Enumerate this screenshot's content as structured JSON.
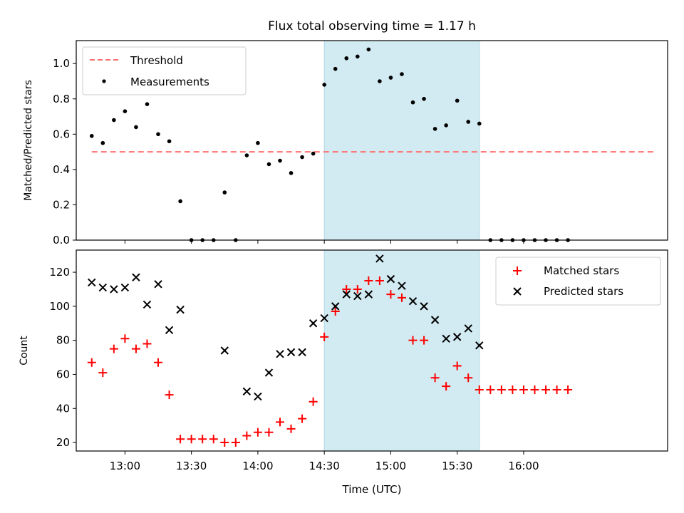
{
  "figure": {
    "title": "Flux total observing time = 1.17 h",
    "xlabel": "Time (UTC)",
    "xticks": [
      "13:00",
      "13:30",
      "14:00",
      "14:30",
      "15:00",
      "15:30",
      "16:00"
    ],
    "colors": {
      "shade": "#add8e6",
      "threshold": "#ff7070",
      "measurements": "#000000",
      "matched": "#ff0000",
      "predicted": "#000000"
    }
  },
  "chart_data": [
    {
      "type": "scatter",
      "ylabel": "Matched/Predicted stars",
      "yticks": [
        "0.0",
        "0.2",
        "0.4",
        "0.6",
        "0.8",
        "1.0"
      ],
      "ylim": [
        0,
        1.13
      ],
      "xlim": [
        "12:38",
        "17:05"
      ],
      "legend_position": "top-left",
      "shaded_span": [
        "14:30",
        "15:40"
      ],
      "series": [
        {
          "name": "Threshold",
          "style": "dashed line",
          "x": [
            "12:45",
            "17:00"
          ],
          "y": [
            0.5,
            0.5
          ]
        },
        {
          "name": "Measurements",
          "style": "dots",
          "x": [
            "12:45",
            "12:50",
            "12:55",
            "13:00",
            "13:05",
            "13:10",
            "13:15",
            "13:20",
            "13:25",
            "13:30",
            "13:35",
            "13:40",
            "13:45",
            "13:50",
            "13:55",
            "14:00",
            "14:05",
            "14:10",
            "14:15",
            "14:20",
            "14:25",
            "14:30",
            "14:35",
            "14:40",
            "14:45",
            "14:50",
            "14:55",
            "15:00",
            "15:05",
            "15:10",
            "15:15",
            "15:20",
            "15:25",
            "15:30",
            "15:35",
            "15:40",
            "15:45",
            "15:50",
            "15:55",
            "16:00",
            "16:05",
            "16:10",
            "16:15",
            "16:20"
          ],
          "y": [
            0.59,
            0.55,
            0.68,
            0.73,
            0.64,
            0.77,
            0.6,
            0.56,
            0.22,
            0.0,
            0.0,
            0.0,
            0.27,
            0.0,
            0.48,
            0.55,
            0.43,
            0.45,
            0.38,
            0.47,
            0.49,
            0.88,
            0.97,
            1.03,
            1.04,
            1.08,
            0.9,
            0.92,
            0.94,
            0.78,
            0.8,
            0.63,
            0.65,
            0.79,
            0.67,
            0.66,
            0.0,
            0.0,
            0.0,
            0.0,
            0.0,
            0.0,
            0.0,
            0.0
          ]
        }
      ]
    },
    {
      "type": "scatter",
      "ylabel": "Count",
      "yticks": [
        "20",
        "40",
        "60",
        "80",
        "100",
        "120"
      ],
      "ylim": [
        15,
        133
      ],
      "xlim": [
        "12:38",
        "17:05"
      ],
      "legend_position": "top-right",
      "shaded_span": [
        "14:30",
        "15:40"
      ],
      "series": [
        {
          "name": "Matched stars",
          "style": "plus markers",
          "x": [
            "12:45",
            "12:50",
            "12:55",
            "13:00",
            "13:05",
            "13:10",
            "13:15",
            "13:20",
            "13:25",
            "13:30",
            "13:35",
            "13:40",
            "13:45",
            "13:50",
            "13:55",
            "14:00",
            "14:05",
            "14:10",
            "14:15",
            "14:20",
            "14:25",
            "14:30",
            "14:35",
            "14:40",
            "14:45",
            "14:50",
            "14:55",
            "15:00",
            "15:05",
            "15:10",
            "15:15",
            "15:20",
            "15:25",
            "15:30",
            "15:35",
            "15:40",
            "15:45",
            "15:50",
            "15:55",
            "16:00",
            "16:05",
            "16:10",
            "16:15",
            "16:20"
          ],
          "y": [
            67,
            61,
            75,
            81,
            75,
            78,
            67,
            48,
            22,
            22,
            22,
            22,
            20,
            20,
            24,
            26,
            26,
            32,
            28,
            34,
            44,
            82,
            97,
            110,
            110,
            115,
            115,
            107,
            105,
            80,
            80,
            58,
            53,
            65,
            58,
            51,
            51,
            51,
            51,
            51,
            51,
            51,
            51,
            51
          ]
        },
        {
          "name": "Predicted stars",
          "style": "x markers",
          "x": [
            "12:45",
            "12:50",
            "12:55",
            "13:00",
            "13:05",
            "13:10",
            "13:15",
            "13:20",
            "13:25",
            "13:45",
            "13:55",
            "14:00",
            "14:05",
            "14:10",
            "14:15",
            "14:20",
            "14:25",
            "14:30",
            "14:35",
            "14:40",
            "14:45",
            "14:50",
            "14:55",
            "15:00",
            "15:05",
            "15:10",
            "15:15",
            "15:20",
            "15:25",
            "15:30",
            "15:35",
            "15:40"
          ],
          "y": [
            114,
            111,
            110,
            111,
            117,
            101,
            113,
            86,
            98,
            74,
            50,
            47,
            61,
            72,
            73,
            73,
            90,
            93,
            100,
            107,
            106,
            107,
            128,
            116,
            112,
            103,
            100,
            92,
            81,
            82,
            87,
            77
          ]
        }
      ]
    }
  ]
}
